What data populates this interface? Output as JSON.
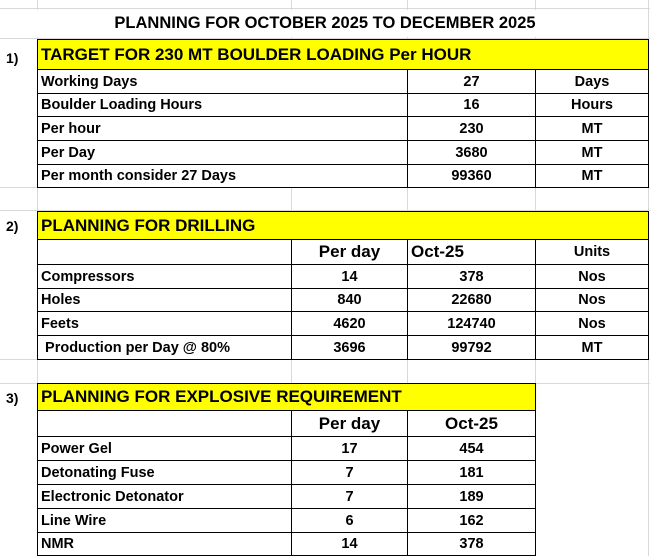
{
  "title": "PLANNING FOR OCTOBER 2025 TO  DECEMBER 2025",
  "section1": {
    "number": "1)",
    "heading": "TARGET FOR 230 MT  BOULDER LOADING Per HOUR",
    "rows": [
      {
        "label": "Working Days",
        "value": "27",
        "unit": "Days"
      },
      {
        "label": "Boulder Loading Hours",
        "value": "16",
        "unit": "Hours"
      },
      {
        "label": "Per hour",
        "value": "230",
        "unit": "MT"
      },
      {
        "label": "Per Day",
        "value": "3680",
        "unit": "MT"
      },
      {
        "label": "Per month  consider 27 Days",
        "value": "99360",
        "unit": "MT"
      }
    ]
  },
  "section2": {
    "number": "2)",
    "heading": "PLANNING FOR DRILLING",
    "columns": [
      "Per day",
      "Oct-25",
      "Units"
    ],
    "rows": [
      {
        "label": "Compressors",
        "per_day": "14",
        "month": "378",
        "unit": "Nos"
      },
      {
        "label": "Holes",
        "per_day": "840",
        "month": "22680",
        "unit": "Nos"
      },
      {
        "label": "Feets",
        "per_day": "4620",
        "month": "124740",
        "unit": "Nos"
      },
      {
        "label": " Production per Day @ 80%",
        "per_day": "3696",
        "month": "99792",
        "unit": "MT"
      }
    ]
  },
  "section3": {
    "number": "3)",
    "heading": "PLANNING FOR EXPLOSIVE REQUIREMENT",
    "columns": [
      "Per day",
      "Oct-25"
    ],
    "rows": [
      {
        "label": "Power Gel",
        "per_day": "17",
        "month": "454"
      },
      {
        "label": "Detonating Fuse",
        "per_day": "7",
        "month": "181"
      },
      {
        "label": "Electronic Detonator",
        "per_day": "7",
        "month": "189"
      },
      {
        "label": "Line Wire",
        "per_day": "6",
        "month": "162"
      },
      {
        "label": "NMR",
        "per_day": "14",
        "month": "378"
      }
    ]
  }
}
